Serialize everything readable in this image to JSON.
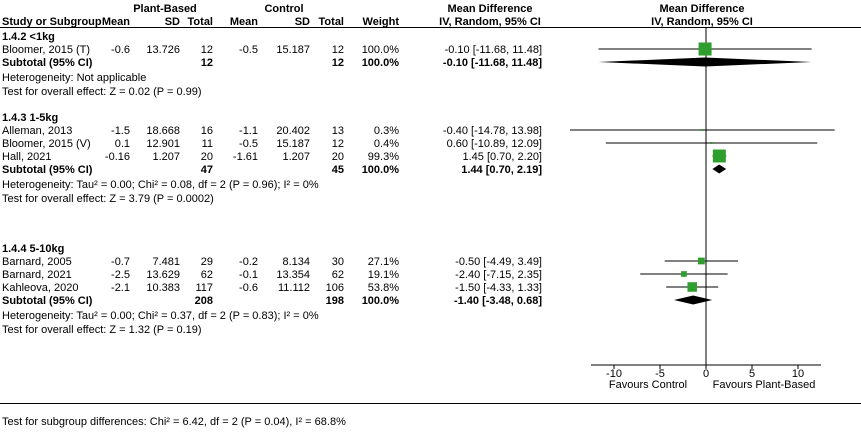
{
  "headers": {
    "plant_based": "Plant-Based",
    "control": "Control",
    "mean_difference_text": "Mean Difference",
    "mean_difference_plot": "Mean Difference",
    "study_or_subgroup": "Study or Subgroup",
    "mean1": "Mean",
    "sd1": "SD",
    "total1": "Total",
    "mean2": "Mean",
    "sd2": "SD",
    "total2": "Total",
    "weight": "Weight",
    "iv_random_text": "IV, Random, 95% CI",
    "iv_random_plot": "IV, Random, 95% CI"
  },
  "chart_data": {
    "type": "scatter",
    "subtype": "forest-plot",
    "effect_measure": "Mean Difference",
    "method": "IV, Random, 95% CI",
    "x_ticks": [
      -10,
      -5,
      0,
      5,
      10
    ],
    "x_axis_left_label": "Favours Control",
    "x_axis_right_label": "Favours Plant-Based",
    "marker_color": "#2e9e2e",
    "diamond_color": "#000000",
    "line_color": "#000000",
    "groups": [
      {
        "label": "1.4.2 <1kg",
        "studies": [
          {
            "study": "Bloomer, 2015 (T)",
            "mean1": "-0.6",
            "sd1": "13.726",
            "total1": "12",
            "mean2": "-0.5",
            "sd2": "15.187",
            "total2": "12",
            "weight": "100.0%",
            "md": -0.1,
            "ci_low": -11.68,
            "ci_high": 11.48,
            "md_text": "-0.10 [-11.68, 11.48]"
          }
        ],
        "subtotal": {
          "label": "Subtotal (95% CI)",
          "total1": "12",
          "total2": "12",
          "weight": "100.0%",
          "md": -0.1,
          "ci_low": -11.68,
          "ci_high": 11.48,
          "md_text": "-0.10 [-11.68, 11.48]"
        },
        "heterogeneity": "Heterogeneity: Not applicable",
        "overall_effect": "Test for overall effect: Z = 0.02 (P = 0.99)"
      },
      {
        "label": "1.4.3 1-5kg",
        "studies": [
          {
            "study": "Alleman, 2013",
            "mean1": "-1.5",
            "sd1": "18.668",
            "total1": "16",
            "mean2": "-1.1",
            "sd2": "20.402",
            "total2": "13",
            "weight": "0.3%",
            "md": -0.4,
            "ci_low": -14.78,
            "ci_high": 13.98,
            "md_text": "-0.40 [-14.78, 13.98]"
          },
          {
            "study": "Bloomer, 2015 (V)",
            "mean1": "0.1",
            "sd1": "12.901",
            "total1": "11",
            "mean2": "-0.5",
            "sd2": "15.187",
            "total2": "12",
            "weight": "0.4%",
            "md": 0.6,
            "ci_low": -10.89,
            "ci_high": 12.09,
            "md_text": "0.60 [-10.89, 12.09]"
          },
          {
            "study": "Hall, 2021",
            "mean1": "-0.16",
            "sd1": "1.207",
            "total1": "20",
            "mean2": "-1.61",
            "sd2": "1.207",
            "total2": "20",
            "weight": "99.3%",
            "md": 1.45,
            "ci_low": 0.7,
            "ci_high": 2.2,
            "md_text": "1.45 [0.70, 2.20]"
          }
        ],
        "subtotal": {
          "label": "Subtotal (95% CI)",
          "total1": "47",
          "total2": "45",
          "weight": "100.0%",
          "md": 1.44,
          "ci_low": 0.7,
          "ci_high": 2.19,
          "md_text": "1.44 [0.70, 2.19]"
        },
        "heterogeneity": "Heterogeneity: Tau² = 0.00; Chi² = 0.08, df = 2 (P = 0.96); I² = 0%",
        "overall_effect": "Test for overall effect: Z = 3.79 (P = 0.0002)"
      },
      {
        "label": "1.4.4 5-10kg",
        "studies": [
          {
            "study": "Barnard, 2005",
            "mean1": "-0.7",
            "sd1": "7.481",
            "total1": "29",
            "mean2": "-0.2",
            "sd2": "8.134",
            "total2": "30",
            "weight": "27.1%",
            "md": -0.5,
            "ci_low": -4.49,
            "ci_high": 3.49,
            "md_text": "-0.50 [-4.49, 3.49]"
          },
          {
            "study": "Barnard, 2021",
            "mean1": "-2.5",
            "sd1": "13.629",
            "total1": "62",
            "mean2": "-0.1",
            "sd2": "13.354",
            "total2": "62",
            "weight": "19.1%",
            "md": -2.4,
            "ci_low": -7.15,
            "ci_high": 2.35,
            "md_text": "-2.40 [-7.15, 2.35]"
          },
          {
            "study": "Kahleova, 2020",
            "mean1": "-2.1",
            "sd1": "10.383",
            "total1": "117",
            "mean2": "-0.6",
            "sd2": "11.112",
            "total2": "106",
            "weight": "53.8%",
            "md": -1.5,
            "ci_low": -4.33,
            "ci_high": 1.33,
            "md_text": "-1.50 [-4.33, 1.33]"
          }
        ],
        "subtotal": {
          "label": "Subtotal (95% CI)",
          "total1": "208",
          "total2": "198",
          "weight": "100.0%",
          "md": -1.4,
          "ci_low": -3.48,
          "ci_high": 0.68,
          "md_text": "-1.40 [-3.48, 0.68]"
        },
        "heterogeneity": "Heterogeneity: Tau² = 0.00; Chi² = 0.37, df = 2 (P = 0.83); I² = 0%",
        "overall_effect": "Test for overall effect: Z = 1.32 (P = 0.19)"
      }
    ]
  },
  "footer": "Test for subgroup differences: Chi² = 6.42, df = 2 (P = 0.04), I² = 68.8%"
}
